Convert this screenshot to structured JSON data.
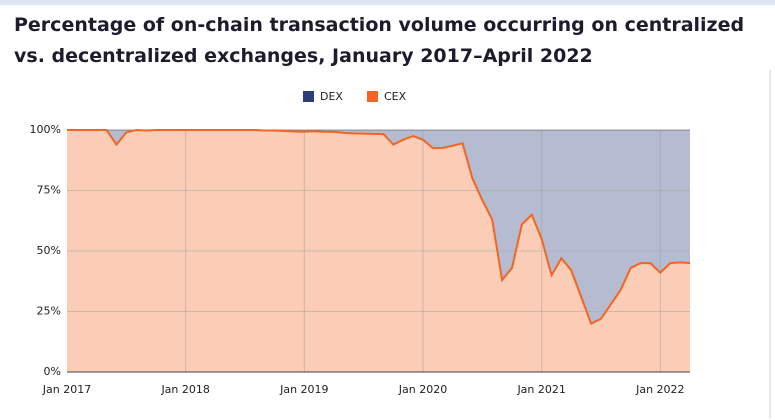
{
  "chart_data": {
    "type": "stacked-area",
    "title": "Percentage of on-chain transaction volume occurring on centralized vs. decentralized exchanges, January 2017–April 2022",
    "categories": [
      "Jan 2017",
      null,
      null,
      null,
      null,
      null,
      null,
      null,
      null,
      null,
      null,
      null,
      "Jan 2018",
      null,
      null,
      null,
      null,
      null,
      null,
      null,
      null,
      null,
      null,
      null,
      "Jan 2019",
      null,
      null,
      null,
      null,
      null,
      null,
      null,
      null,
      null,
      null,
      null,
      "Jan 2020",
      null,
      null,
      null,
      null,
      null,
      null,
      null,
      null,
      null,
      null,
      null,
      "Jan 2021",
      null,
      null,
      null,
      null,
      null,
      null,
      null,
      null,
      null,
      null,
      null,
      "Jan 2022",
      null,
      null,
      null
    ],
    "series": [
      {
        "name": "CEX",
        "color": "#f26522",
        "values": [
          100,
          100,
          100,
          100,
          100,
          94,
          99,
          100,
          99.8,
          100,
          100,
          100,
          100,
          100,
          100,
          100,
          100,
          100,
          100,
          100,
          99.8,
          99.8,
          99.6,
          99.4,
          99.3,
          99.5,
          99.3,
          99.2,
          98.8,
          98.6,
          98.5,
          98.4,
          98.3,
          94,
          96,
          97.5,
          96,
          92.5,
          92.6,
          93.5,
          94.5,
          80,
          71,
          63,
          38,
          43,
          61,
          65,
          55,
          40,
          47,
          42,
          31,
          20,
          22,
          28,
          34,
          43,
          45,
          45,
          41,
          45,
          45.3,
          45
        ]
      },
      {
        "name": "DEX",
        "color": "#2c3e7a",
        "values": [
          0,
          0,
          0,
          0,
          0,
          6,
          1,
          0,
          0.2,
          0,
          0,
          0,
          0,
          0,
          0,
          0,
          0,
          0,
          0,
          0,
          0.2,
          0.2,
          0.4,
          0.6,
          0.7,
          0.5,
          0.7,
          0.8,
          1.2,
          1.4,
          1.5,
          1.6,
          1.7,
          6,
          4,
          2.5,
          4,
          7.5,
          7.4,
          6.5,
          5.5,
          20,
          29,
          37,
          62,
          57,
          39,
          35,
          45,
          60,
          53,
          58,
          69,
          80,
          78,
          72,
          66,
          57,
          55,
          55,
          59,
          55,
          54.7,
          55
        ]
      }
    ],
    "ylim": [
      0,
      100
    ],
    "yticks": [
      {
        "value": 0,
        "label": "0%"
      },
      {
        "value": 25,
        "label": "25%"
      },
      {
        "value": 50,
        "label": "50%"
      },
      {
        "value": 75,
        "label": "75%"
      },
      {
        "value": 100,
        "label": "100%"
      }
    ],
    "grid": true,
    "legend": "top"
  }
}
